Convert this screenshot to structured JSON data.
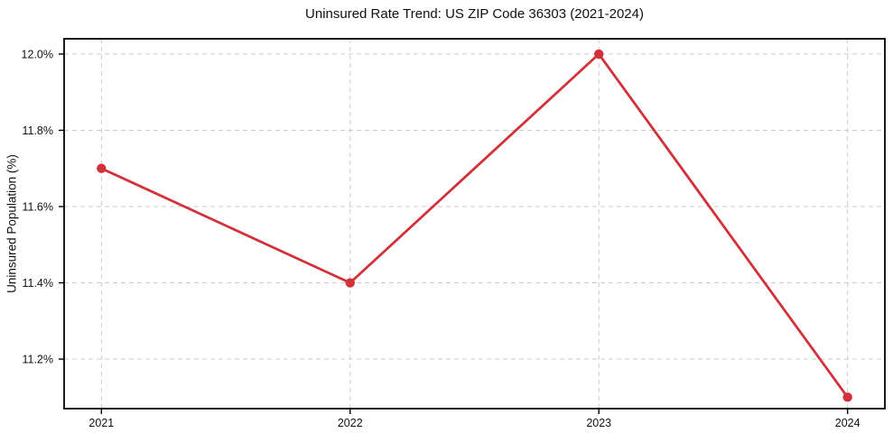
{
  "chart_data": {
    "type": "line",
    "title": "Uninsured Rate Trend: US ZIP Code 36303 (2021-2024)",
    "xlabel": "",
    "ylabel": "Uninsured Population (%)",
    "x": [
      2021,
      2022,
      2023,
      2024
    ],
    "series": [
      {
        "name": "Uninsured rate",
        "values": [
          11.7,
          11.4,
          12.0,
          11.1
        ]
      }
    ],
    "xticks": [
      2021,
      2022,
      2023,
      2024
    ],
    "xtick_labels": [
      "2021",
      "2022",
      "2023",
      "2024"
    ],
    "yticks": [
      11.2,
      11.4,
      11.6,
      11.8,
      12.0
    ],
    "ytick_labels": [
      "11.2%",
      "11.4%",
      "11.6%",
      "11.8%",
      "12.0%"
    ],
    "xlim": [
      2020.85,
      2024.15
    ],
    "ylim": [
      11.07,
      12.04
    ],
    "grid": true,
    "grid_style": "dashed",
    "grid_color": "#cbcbcb",
    "line_color": "#d2313a",
    "marker": "circle",
    "legend": "none",
    "background_color": "#ffffff",
    "text_color": "#111111"
  }
}
